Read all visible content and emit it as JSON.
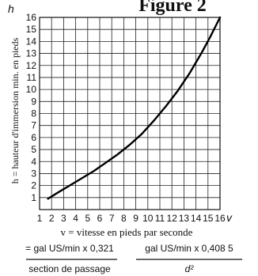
{
  "figure_label": "Figure 2",
  "formulas": {
    "left_numerator": "= gal US/min x 0,321",
    "left_denominator": "section de passage",
    "right_numerator": "gal US/min x 0,408 5",
    "right_denominator": "d²"
  },
  "chart_data": {
    "type": "line",
    "title": "",
    "x_axis_symbol": "v",
    "y_axis_symbol": "h",
    "xlabel": "v = vitesse en pieds par seconde",
    "ylabel": "h = hauteur d'immersion min. en pieds",
    "xlim": [
      1,
      16
    ],
    "ylim": [
      0,
      16
    ],
    "x_ticks": [
      1,
      2,
      3,
      4,
      5,
      6,
      7,
      8,
      9,
      10,
      11,
      12,
      13,
      14,
      15,
      16
    ],
    "y_ticks": [
      1,
      2,
      3,
      4,
      5,
      6,
      7,
      8,
      9,
      10,
      11,
      12,
      13,
      14,
      15,
      16
    ],
    "grid": true,
    "series": [
      {
        "x": [
          1.7,
          2.5,
          3.5,
          4.5,
          5.5,
          6.5,
          7.5,
          8.5,
          9.5,
          10.5,
          11.5,
          12.5,
          13.5,
          14.5,
          15.2,
          16.0
        ],
        "y": [
          0.9,
          1.4,
          2.0,
          2.6,
          3.2,
          3.9,
          4.6,
          5.4,
          6.3,
          7.4,
          8.6,
          9.9,
          11.4,
          13.1,
          14.4,
          16.0
        ]
      }
    ]
  }
}
